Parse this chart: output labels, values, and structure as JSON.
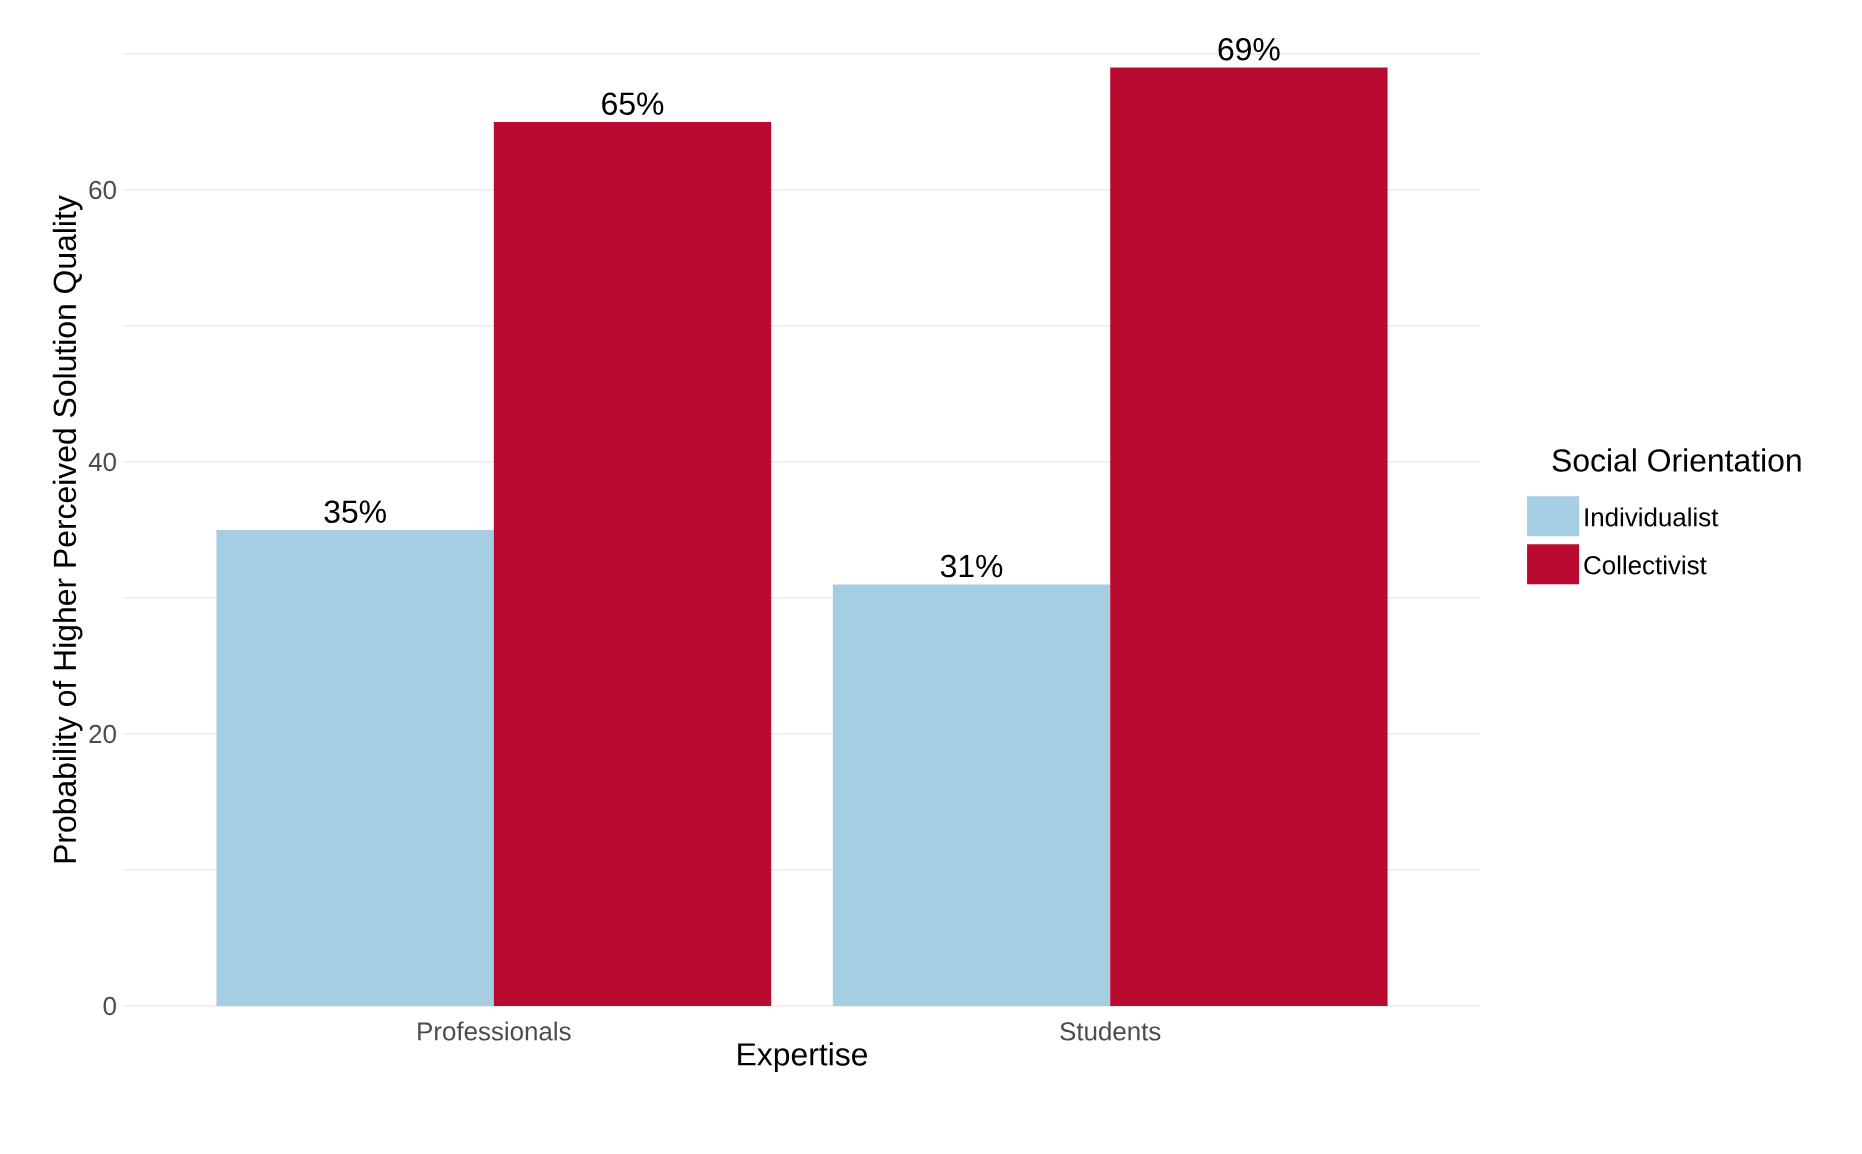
{
  "chart_data": {
    "type": "bar",
    "xlabel": "Expertise",
    "ylabel": "Probability of Higher Perceived Solution Quality",
    "legend_title": "Social Orientation",
    "categories": [
      "Professionals",
      "Students"
    ],
    "series": [
      {
        "name": "Individualist",
        "color": "#a6cee3",
        "values": [
          35,
          31
        ],
        "value_labels": [
          "35%",
          "31%"
        ]
      },
      {
        "name": "Collectivist",
        "color": "#bb0a30",
        "values": [
          65,
          69
        ],
        "value_labels": [
          "65%",
          "69%"
        ]
      }
    ],
    "ylim": [
      0,
      70
    ],
    "yticks": [
      0,
      {
        "value": 10,
        "label": null
      },
      20,
      {
        "value": 30,
        "label": null
      },
      40,
      {
        "value": 50,
        "label": null
      },
      60,
      {
        "value": 70,
        "label": null
      }
    ],
    "grid": true,
    "legend": "right"
  }
}
